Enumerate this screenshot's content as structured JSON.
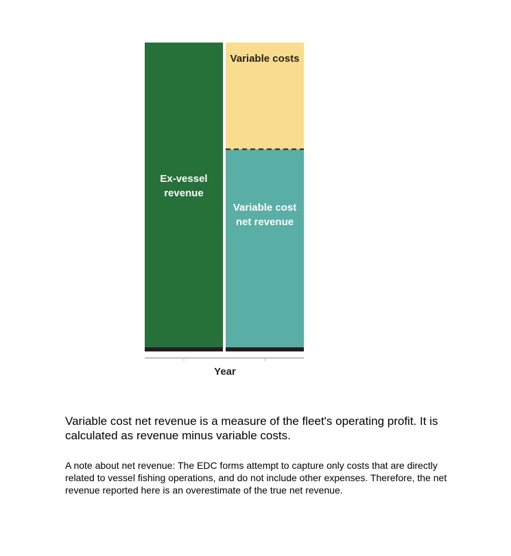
{
  "chart_data": {
    "type": "bar",
    "stacked": true,
    "categories": [
      "",
      ""
    ],
    "xlabel": "Year",
    "ylabel": "",
    "ylim": [
      0,
      100
    ],
    "grid": false,
    "series": [
      {
        "name": "",
        "bars": [
          {
            "segments": [
              {
                "label_lines": [
                  "Ex-vessel",
                  "revenue"
                ],
                "value": 100,
                "color": "#257139",
                "label_color": "#ffffff"
              }
            ]
          },
          {
            "segments": [
              {
                "label_lines": [
                  "Variable cost",
                  "net revenue"
                ],
                "value": 65,
                "color": "#59afa5",
                "label_color": "#ffffff"
              },
              {
                "label_lines": [
                  "Variable costs"
                ],
                "value": 35,
                "color": "#fadc8f",
                "label_color": "#222222"
              }
            ]
          }
        ]
      }
    ],
    "colors": {
      "baseline": "#231f20",
      "axis": "#bbbbbb",
      "divider": "#222222"
    }
  },
  "text": {
    "main": "Variable cost net revenue is a measure of the fleet's operating profit. It is calculated as revenue minus variable costs.",
    "note": "A note about net revenue: The EDC forms attempt to capture only costs that are directly related to vessel fishing operations, and do not include other expenses. Therefore, the net revenue reported here is an overestimate of the true net revenue."
  }
}
